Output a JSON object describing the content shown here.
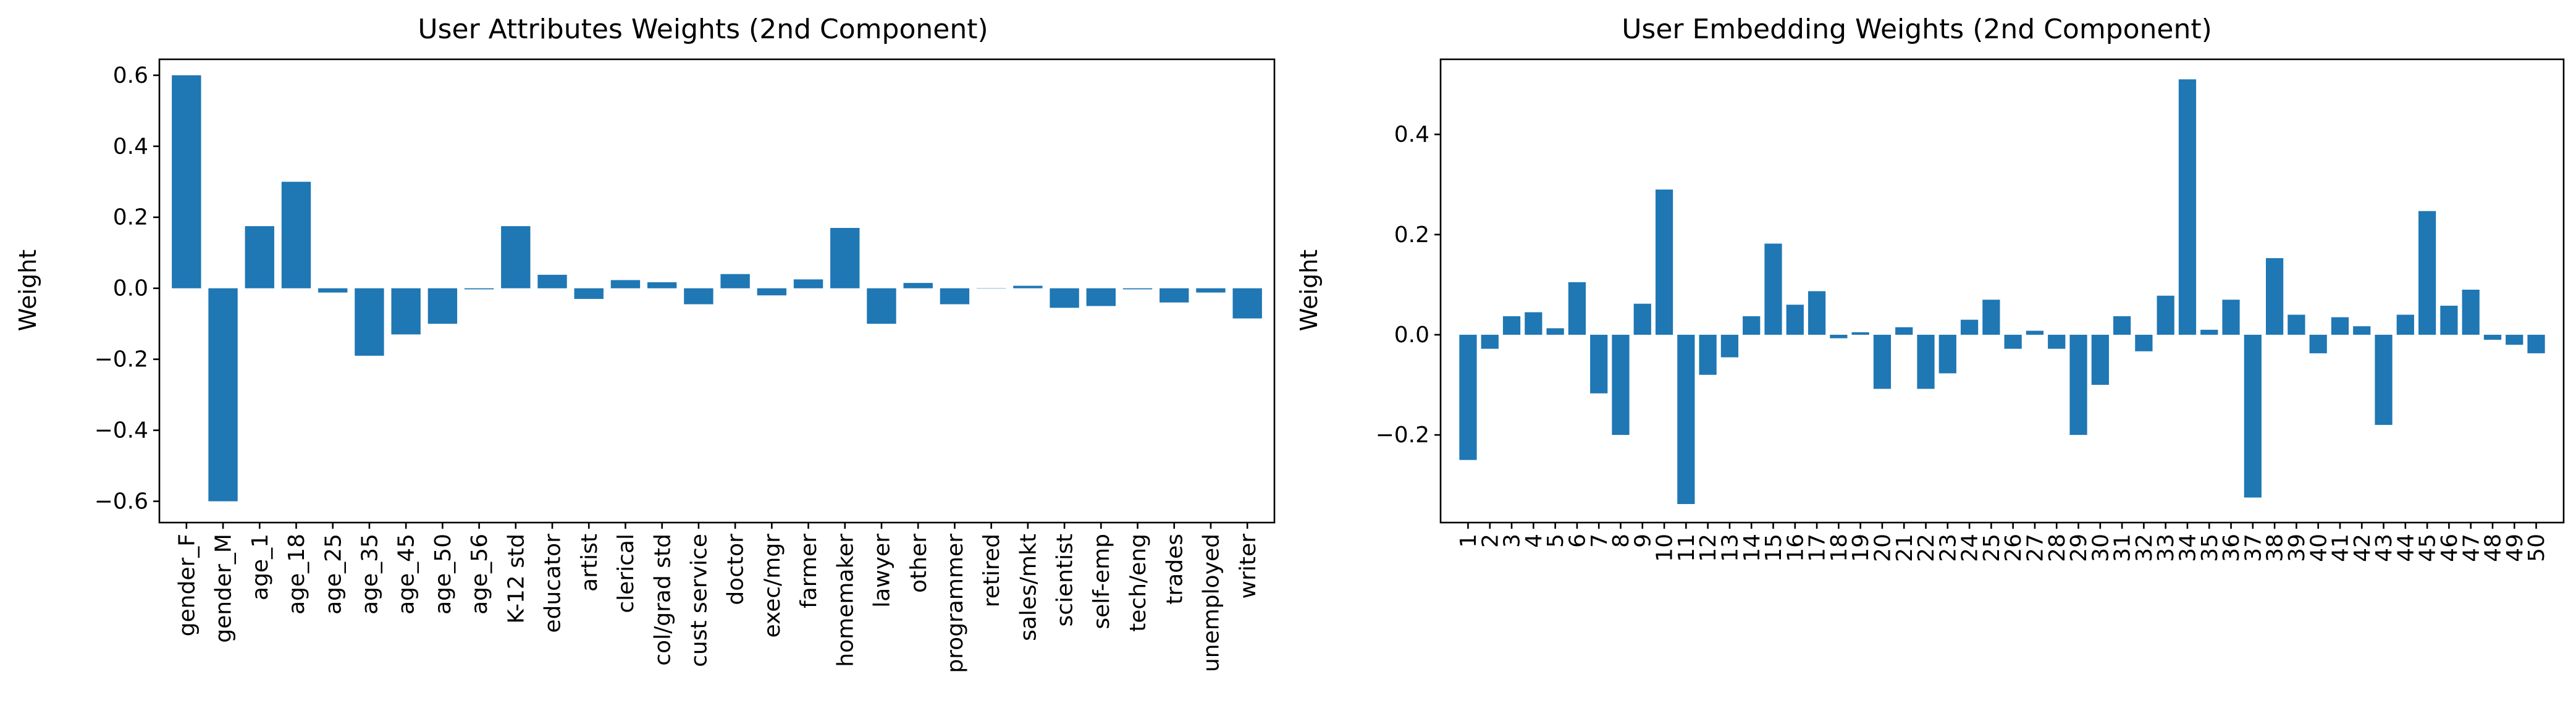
{
  "colors": {
    "bar": "#1f77b4",
    "axis": "#000000",
    "background": "#ffffff"
  },
  "chart_data": [
    {
      "type": "bar",
      "title": "User Attributes Weights (2nd Component)",
      "xlabel": "",
      "ylabel": "Weight",
      "ylim": [
        -0.66,
        0.645
      ],
      "yticks": [
        -0.6,
        -0.4,
        -0.2,
        0.0,
        0.2,
        0.4,
        0.6
      ],
      "ytick_labels": [
        "−0.6",
        "−0.4",
        "−0.2",
        "0.0",
        "0.2",
        "0.4",
        "0.6"
      ],
      "grid": false,
      "categories": [
        "gender_F",
        "gender_M",
        "age_1",
        "age_18",
        "age_25",
        "age_35",
        "age_45",
        "age_50",
        "age_56",
        "K-12 std",
        "educator",
        "artist",
        "clerical",
        "col/grad std",
        "cust service",
        "doctor",
        "exec/mgr",
        "farmer",
        "homemaker",
        "lawyer",
        "other",
        "programmer",
        "retired",
        "sales/mkt",
        "scientist",
        "self-emp",
        "tech/eng",
        "trades",
        "unemployed",
        "writer"
      ],
      "values": [
        0.6,
        -0.6,
        0.175,
        0.3,
        -0.012,
        -0.19,
        -0.13,
        -0.1,
        -0.003,
        0.175,
        0.038,
        -0.03,
        0.023,
        0.017,
        -0.045,
        0.04,
        -0.02,
        0.025,
        0.17,
        -0.1,
        0.015,
        -0.045,
        0.0,
        0.007,
        -0.055,
        -0.05,
        -0.003,
        -0.04,
        -0.012,
        -0.085
      ]
    },
    {
      "type": "bar",
      "title": "User Embedding Weights (2nd Component)",
      "xlabel": "",
      "ylabel": "Weight",
      "ylim": [
        -0.375,
        0.55
      ],
      "yticks": [
        -0.2,
        0.0,
        0.2,
        0.4
      ],
      "ytick_labels": [
        "−0.2",
        "0.0",
        "0.2",
        "0.4"
      ],
      "grid": false,
      "categories": [
        "1",
        "2",
        "3",
        "4",
        "5",
        "6",
        "7",
        "8",
        "9",
        "10",
        "11",
        "12",
        "13",
        "14",
        "15",
        "16",
        "17",
        "18",
        "19",
        "20",
        "21",
        "22",
        "23",
        "24",
        "25",
        "26",
        "27",
        "28",
        "29",
        "30",
        "31",
        "32",
        "33",
        "34",
        "35",
        "36",
        "37",
        "38",
        "39",
        "40",
        "41",
        "42",
        "43",
        "44",
        "45",
        "46",
        "47",
        "48",
        "49",
        "50"
      ],
      "values": [
        -0.25,
        -0.028,
        0.037,
        0.045,
        0.013,
        0.105,
        -0.117,
        -0.2,
        0.062,
        0.29,
        -0.338,
        -0.08,
        -0.045,
        0.037,
        0.182,
        0.06,
        0.087,
        -0.007,
        0.005,
        -0.108,
        0.015,
        -0.108,
        -0.077,
        0.03,
        0.07,
        -0.028,
        0.008,
        -0.028,
        -0.2,
        -0.1,
        0.037,
        -0.033,
        0.078,
        0.51,
        0.01,
        0.07,
        -0.325,
        0.153,
        0.04,
        -0.037,
        0.035,
        0.017,
        -0.18,
        0.04,
        0.247,
        0.058,
        0.09,
        -0.01,
        -0.02,
        -0.037
      ]
    }
  ]
}
